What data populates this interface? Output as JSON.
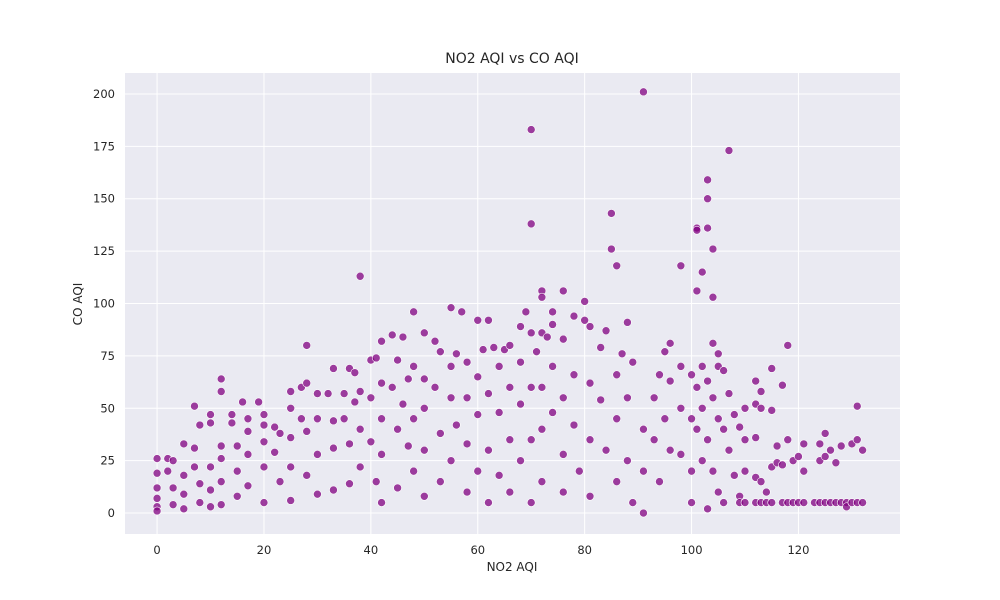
{
  "chart_data": {
    "type": "scatter",
    "title": "NO2 AQI vs CO AQI",
    "xlabel": "NO2 AQI",
    "ylabel": "CO AQI",
    "xlim": [
      -6,
      139
    ],
    "ylim": [
      -10,
      210
    ],
    "xticks": [
      0,
      20,
      40,
      60,
      80,
      100,
      120
    ],
    "yticks": [
      0,
      25,
      50,
      75,
      100,
      125,
      150,
      175,
      200
    ],
    "grid": true,
    "colors": {
      "background": "#eaeaf2",
      "grid": "#ffffff",
      "point": "#800080"
    },
    "series": [
      {
        "points": [
          [
            0,
            26
          ],
          [
            0,
            19
          ],
          [
            0,
            12
          ],
          [
            0,
            7
          ],
          [
            0,
            3
          ],
          [
            0,
            1
          ],
          [
            2,
            26
          ],
          [
            2,
            20
          ],
          [
            3,
            25
          ],
          [
            3,
            12
          ],
          [
            3,
            4
          ],
          [
            5,
            33
          ],
          [
            5,
            18
          ],
          [
            5,
            9
          ],
          [
            5,
            2
          ],
          [
            7,
            51
          ],
          [
            7,
            31
          ],
          [
            7,
            22
          ],
          [
            8,
            42
          ],
          [
            8,
            14
          ],
          [
            8,
            5
          ],
          [
            10,
            47
          ],
          [
            10,
            43
          ],
          [
            10,
            22
          ],
          [
            10,
            11
          ],
          [
            10,
            3
          ],
          [
            12,
            64
          ],
          [
            12,
            58
          ],
          [
            12,
            32
          ],
          [
            12,
            26
          ],
          [
            12,
            15
          ],
          [
            12,
            4
          ],
          [
            14,
            47
          ],
          [
            14,
            43
          ],
          [
            15,
            32
          ],
          [
            15,
            20
          ],
          [
            15,
            8
          ],
          [
            16,
            53
          ],
          [
            17,
            45
          ],
          [
            17,
            39
          ],
          [
            17,
            28
          ],
          [
            17,
            13
          ],
          [
            19,
            53
          ],
          [
            20,
            47
          ],
          [
            20,
            42
          ],
          [
            20,
            34
          ],
          [
            20,
            22
          ],
          [
            20,
            5
          ],
          [
            22,
            41
          ],
          [
            22,
            29
          ],
          [
            23,
            38
          ],
          [
            23,
            15
          ],
          [
            25,
            58
          ],
          [
            25,
            50
          ],
          [
            25,
            36
          ],
          [
            25,
            22
          ],
          [
            25,
            6
          ],
          [
            27,
            60
          ],
          [
            27,
            45
          ],
          [
            28,
            80
          ],
          [
            28,
            62
          ],
          [
            28,
            39
          ],
          [
            28,
            18
          ],
          [
            30,
            57
          ],
          [
            30,
            45
          ],
          [
            30,
            28
          ],
          [
            30,
            9
          ],
          [
            32,
            57
          ],
          [
            33,
            44
          ],
          [
            33,
            69
          ],
          [
            33,
            31
          ],
          [
            33,
            11
          ],
          [
            35,
            57
          ],
          [
            35,
            45
          ],
          [
            36,
            69
          ],
          [
            36,
            33
          ],
          [
            36,
            14
          ],
          [
            37,
            67
          ],
          [
            37,
            53
          ],
          [
            38,
            113
          ],
          [
            38,
            58
          ],
          [
            38,
            40
          ],
          [
            38,
            22
          ],
          [
            40,
            73
          ],
          [
            40,
            55
          ],
          [
            40,
            34
          ],
          [
            41,
            74
          ],
          [
            41,
            15
          ],
          [
            42,
            82
          ],
          [
            42,
            62
          ],
          [
            42,
            45
          ],
          [
            42,
            28
          ],
          [
            42,
            5
          ],
          [
            44,
            85
          ],
          [
            44,
            60
          ],
          [
            45,
            73
          ],
          [
            45,
            40
          ],
          [
            45,
            12
          ],
          [
            46,
            84
          ],
          [
            46,
            52
          ],
          [
            47,
            64
          ],
          [
            47,
            32
          ],
          [
            48,
            96
          ],
          [
            48,
            70
          ],
          [
            48,
            45
          ],
          [
            48,
            20
          ],
          [
            50,
            86
          ],
          [
            50,
            64
          ],
          [
            50,
            50
          ],
          [
            50,
            30
          ],
          [
            50,
            8
          ],
          [
            52,
            82
          ],
          [
            52,
            60
          ],
          [
            53,
            77
          ],
          [
            53,
            38
          ],
          [
            53,
            15
          ],
          [
            55,
            98
          ],
          [
            55,
            70
          ],
          [
            55,
            55
          ],
          [
            55,
            25
          ],
          [
            56,
            76
          ],
          [
            56,
            42
          ],
          [
            57,
            96
          ],
          [
            58,
            72
          ],
          [
            58,
            55
          ],
          [
            58,
            33
          ],
          [
            58,
            10
          ],
          [
            60,
            92
          ],
          [
            60,
            65
          ],
          [
            60,
            47
          ],
          [
            60,
            20
          ],
          [
            61,
            78
          ],
          [
            62,
            92
          ],
          [
            62,
            57
          ],
          [
            62,
            30
          ],
          [
            62,
            5
          ],
          [
            63,
            79
          ],
          [
            64,
            70
          ],
          [
            64,
            48
          ],
          [
            64,
            18
          ],
          [
            65,
            78
          ],
          [
            66,
            80
          ],
          [
            66,
            60
          ],
          [
            66,
            35
          ],
          [
            66,
            10
          ],
          [
            68,
            89
          ],
          [
            68,
            72
          ],
          [
            68,
            52
          ],
          [
            68,
            25
          ],
          [
            69,
            96
          ],
          [
            70,
            183
          ],
          [
            70,
            138
          ],
          [
            70,
            86
          ],
          [
            70,
            60
          ],
          [
            70,
            35
          ],
          [
            70,
            5
          ],
          [
            71,
            77
          ],
          [
            72,
            106
          ],
          [
            72,
            103
          ],
          [
            72,
            86
          ],
          [
            72,
            60
          ],
          [
            72,
            40
          ],
          [
            72,
            15
          ],
          [
            73,
            84
          ],
          [
            74,
            90
          ],
          [
            74,
            96
          ],
          [
            74,
            70
          ],
          [
            74,
            48
          ],
          [
            76,
            106
          ],
          [
            76,
            83
          ],
          [
            76,
            55
          ],
          [
            76,
            28
          ],
          [
            76,
            10
          ],
          [
            78,
            94
          ],
          [
            78,
            66
          ],
          [
            78,
            42
          ],
          [
            79,
            20
          ],
          [
            80,
            101
          ],
          [
            80,
            92
          ],
          [
            81,
            89
          ],
          [
            81,
            62
          ],
          [
            81,
            35
          ],
          [
            81,
            8
          ],
          [
            83,
            79
          ],
          [
            83,
            54
          ],
          [
            84,
            87
          ],
          [
            84,
            30
          ],
          [
            85,
            143
          ],
          [
            85,
            126
          ],
          [
            86,
            118
          ],
          [
            86,
            66
          ],
          [
            86,
            45
          ],
          [
            86,
            15
          ],
          [
            87,
            76
          ],
          [
            88,
            91
          ],
          [
            88,
            55
          ],
          [
            88,
            25
          ],
          [
            89,
            72
          ],
          [
            89,
            5
          ],
          [
            91,
            201
          ],
          [
            91,
            40
          ],
          [
            91,
            20
          ],
          [
            91,
            0
          ],
          [
            93,
            55
          ],
          [
            93,
            35
          ],
          [
            94,
            66
          ],
          [
            94,
            15
          ],
          [
            95,
            77
          ],
          [
            95,
            45
          ],
          [
            96,
            81
          ],
          [
            96,
            63
          ],
          [
            96,
            30
          ],
          [
            98,
            118
          ],
          [
            98,
            70
          ],
          [
            98,
            50
          ],
          [
            98,
            28
          ],
          [
            100,
            66
          ],
          [
            100,
            45
          ],
          [
            100,
            20
          ],
          [
            100,
            5
          ],
          [
            101,
            136
          ],
          [
            101,
            135
          ],
          [
            101,
            106
          ],
          [
            101,
            60
          ],
          [
            101,
            40
          ],
          [
            102,
            115
          ],
          [
            102,
            70
          ],
          [
            102,
            50
          ],
          [
            102,
            25
          ],
          [
            103,
            159
          ],
          [
            103,
            150
          ],
          [
            103,
            136
          ],
          [
            103,
            63
          ],
          [
            103,
            35
          ],
          [
            103,
            2
          ],
          [
            104,
            126
          ],
          [
            104,
            103
          ],
          [
            104,
            81
          ],
          [
            104,
            55
          ],
          [
            104,
            20
          ],
          [
            105,
            76
          ],
          [
            105,
            70
          ],
          [
            105,
            45
          ],
          [
            105,
            10
          ],
          [
            106,
            68
          ],
          [
            106,
            40
          ],
          [
            106,
            5
          ],
          [
            107,
            173
          ],
          [
            107,
            57
          ],
          [
            107,
            30
          ],
          [
            108,
            47
          ],
          [
            108,
            18
          ],
          [
            109,
            41
          ],
          [
            109,
            8
          ],
          [
            109,
            5
          ],
          [
            110,
            50
          ],
          [
            110,
            35
          ],
          [
            110,
            20
          ],
          [
            110,
            5
          ],
          [
            112,
            63
          ],
          [
            112,
            52
          ],
          [
            112,
            36
          ],
          [
            112,
            17
          ],
          [
            112,
            5
          ],
          [
            113,
            58
          ],
          [
            113,
            50
          ],
          [
            113,
            15
          ],
          [
            113,
            5
          ],
          [
            114,
            10
          ],
          [
            114,
            5
          ],
          [
            115,
            69
          ],
          [
            115,
            49
          ],
          [
            115,
            22
          ],
          [
            115,
            5
          ],
          [
            116,
            32
          ],
          [
            116,
            24
          ],
          [
            117,
            61
          ],
          [
            117,
            23
          ],
          [
            117,
            5
          ],
          [
            118,
            80
          ],
          [
            118,
            35
          ],
          [
            118,
            5
          ],
          [
            119,
            25
          ],
          [
            119,
            5
          ],
          [
            120,
            27
          ],
          [
            120,
            5
          ],
          [
            121,
            33
          ],
          [
            121,
            20
          ],
          [
            121,
            5
          ],
          [
            123,
            5
          ],
          [
            124,
            33
          ],
          [
            124,
            25
          ],
          [
            124,
            5
          ],
          [
            125,
            38
          ],
          [
            125,
            27
          ],
          [
            125,
            5
          ],
          [
            126,
            30
          ],
          [
            126,
            5
          ],
          [
            127,
            24
          ],
          [
            127,
            5
          ],
          [
            128,
            32
          ],
          [
            128,
            5
          ],
          [
            129,
            5
          ],
          [
            129,
            3
          ],
          [
            130,
            33
          ],
          [
            130,
            5
          ],
          [
            131,
            51
          ],
          [
            131,
            35
          ],
          [
            131,
            5
          ],
          [
            132,
            30
          ],
          [
            132,
            5
          ]
        ]
      }
    ]
  }
}
